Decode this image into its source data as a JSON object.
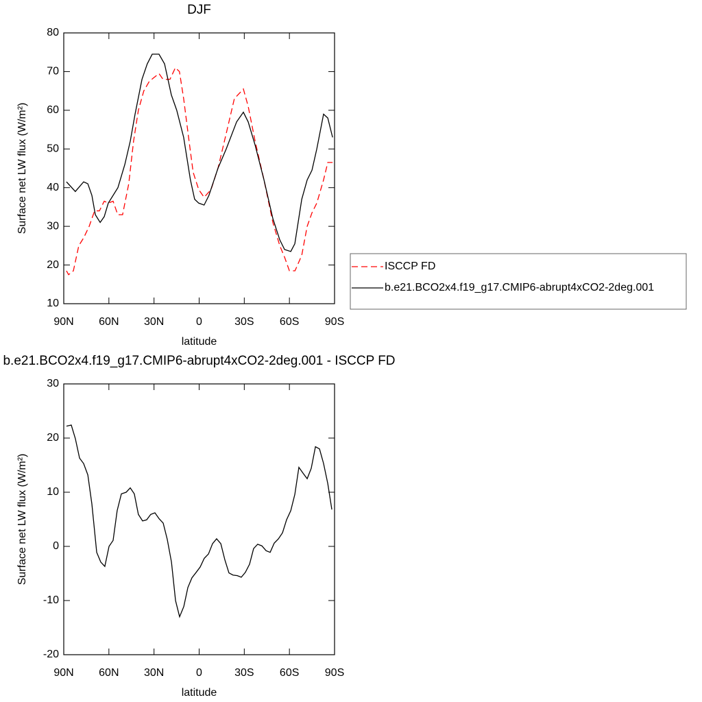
{
  "chart_data": [
    {
      "type": "line",
      "title": "DJF",
      "xlabel": "latitude",
      "ylabel": "Surface net LW flux (W/m²)",
      "xlim": [
        90,
        -90
      ],
      "ylim": [
        10,
        80
      ],
      "xticks": [
        {
          "value": 90,
          "label": "90N"
        },
        {
          "value": 60,
          "label": "60N"
        },
        {
          "value": 30,
          "label": "30N"
        },
        0,
        {
          "value": -30,
          "label": "30S"
        },
        {
          "value": -60,
          "label": "60S"
        },
        {
          "value": -90,
          "label": "90S"
        }
      ],
      "yticks": [
        10,
        20,
        30,
        40,
        50,
        60,
        70,
        80
      ],
      "legend": "right",
      "series": [
        {
          "name": "ISCCP FD",
          "color": "#ff0000",
          "dash": "dashed",
          "x": [
            88.2,
            86.8,
            83.6,
            80,
            76.8,
            73.1,
            69.5,
            66.3,
            63.1,
            60.4,
            57.2,
            54.1,
            50.9,
            46.8,
            43.6,
            40.4,
            36.8,
            33.1,
            29.9,
            26.7,
            24,
            19.4,
            15.8,
            13.1,
            10.3,
            6.7,
            4,
            0.3,
            -3.3,
            -7.9,
            -12.5,
            -18,
            -23.4,
            -29.4,
            -32.6,
            -37.2,
            -43.1,
            -49,
            -53.6,
            -56.8,
            -60,
            -63.7,
            -68.2,
            -71.8,
            -75,
            -78.2,
            -82.7,
            -85.5,
            -88.7
          ],
          "values": [
            18.5,
            17.5,
            18.5,
            25,
            27,
            30,
            34,
            34,
            36.5,
            36,
            36.5,
            33,
            33,
            41,
            52,
            60,
            65,
            67.5,
            68.5,
            69.5,
            68,
            68,
            71,
            70,
            63,
            52,
            44,
            39.5,
            37.5,
            39.5,
            45,
            54,
            63,
            65.5,
            61,
            52,
            42,
            31,
            25,
            22,
            18.5,
            18.5,
            22.5,
            30,
            33.5,
            36,
            42,
            46.5,
            46.5
          ]
        },
        {
          "name": "b.e21.BCO2x4.f19_g17.CMIP6-abrupt4xCO2-2deg.001",
          "color": "#000000",
          "dash": "solid",
          "x": [
            88.2,
            82.3,
            76.8,
            74,
            71.3,
            69,
            65.8,
            63.1,
            60.4,
            54,
            49.4,
            45.8,
            42.6,
            38,
            34.5,
            31.2,
            26.7,
            23,
            18.5,
            14.9,
            10.3,
            5.8,
            3,
            0.3,
            -3.3,
            -6.5,
            -12.5,
            -18,
            -24.9,
            -29.4,
            -32.6,
            -37.2,
            -43.1,
            -49,
            -53.6,
            -56.8,
            -60.9,
            -63.6,
            -68.2,
            -71.8,
            -75,
            -78.2,
            -82.7,
            -85.5,
            -88.7
          ],
          "values": [
            41.5,
            39,
            41.5,
            41,
            38,
            33,
            31,
            32.5,
            36,
            40,
            46,
            52,
            59,
            68,
            72,
            74.5,
            74.5,
            72,
            64,
            60,
            53,
            42,
            37,
            36,
            35.5,
            38,
            45,
            50,
            57,
            59.5,
            57,
            51,
            42,
            32,
            26.5,
            24,
            23.5,
            25.5,
            37,
            42,
            44.5,
            50,
            59,
            58,
            53
          ]
        }
      ]
    },
    {
      "type": "line",
      "title": "b.e21.BCO2x4.f19_g17.CMIP6-abrupt4xCO2-2deg.001 - ISCCP FD",
      "xlabel": "latitude",
      "ylabel": "Surface net LW flux (W/m²)",
      "xlim": [
        90,
        -90
      ],
      "ylim": [
        -20,
        30
      ],
      "xticks": [
        {
          "value": 90,
          "label": "90N"
        },
        {
          "value": 60,
          "label": "60N"
        },
        {
          "value": 30,
          "label": "30N"
        },
        0,
        {
          "value": -30,
          "label": "30S"
        },
        {
          "value": -60,
          "label": "60S"
        },
        {
          "value": -90,
          "label": "90S"
        }
      ],
      "yticks": [
        -20,
        -10,
        0,
        10,
        20,
        30
      ],
      "series": [
        {
          "color": "#000000",
          "dash": "solid",
          "x": [
            88.2,
            85,
            82.3,
            79.5,
            76.8,
            74,
            71.3,
            68.1,
            65.4,
            62.7,
            59.9,
            57.2,
            54.5,
            51.7,
            48.5,
            45.8,
            43.1,
            40.4,
            37.6,
            34.9,
            32.2,
            29.4,
            26.6,
            23.9,
            21.2,
            18.4,
            15.7,
            13,
            10.2,
            7.5,
            4.8,
            2,
            -0.7,
            -3.4,
            -6.2,
            -8.9,
            -11.6,
            -14.4,
            -17.1,
            -19.8,
            -22.5,
            -25.3,
            -28,
            -30.7,
            -33.5,
            -36.2,
            -38.9,
            -41.7,
            -44.5,
            -47.2,
            -49.9,
            -52.7,
            -55.4,
            -58.1,
            -60.9,
            -63.6,
            -66.3,
            -69.1,
            -71.8,
            -74.5,
            -77.3,
            -80,
            -82.7,
            -85.5,
            -88.2
          ],
          "values": [
            22.2,
            22.4,
            19.9,
            16.3,
            15.3,
            13.2,
            7.8,
            -1.1,
            -2.9,
            -3.7,
            0,
            1.1,
            6.6,
            9.7,
            10,
            10.8,
            9.7,
            5.9,
            4.7,
            4.9,
            5.9,
            6.2,
            5.1,
            4.3,
            1.3,
            -2.9,
            -10,
            -13,
            -11.1,
            -7.6,
            -5.8,
            -4.8,
            -3.8,
            -2.2,
            -1.4,
            0.5,
            1.4,
            0.5,
            -2.5,
            -4.9,
            -5.3,
            -5.4,
            -5.7,
            -4.8,
            -3.3,
            -0.4,
            0.4,
            0.1,
            -0.8,
            -1.1,
            0.6,
            1.4,
            2.5,
            4.9,
            6.6,
            9.6,
            14.6,
            13.5,
            12.5,
            14.4,
            18.4,
            18,
            15.3,
            11.6,
            6.8
          ]
        }
      ]
    }
  ]
}
